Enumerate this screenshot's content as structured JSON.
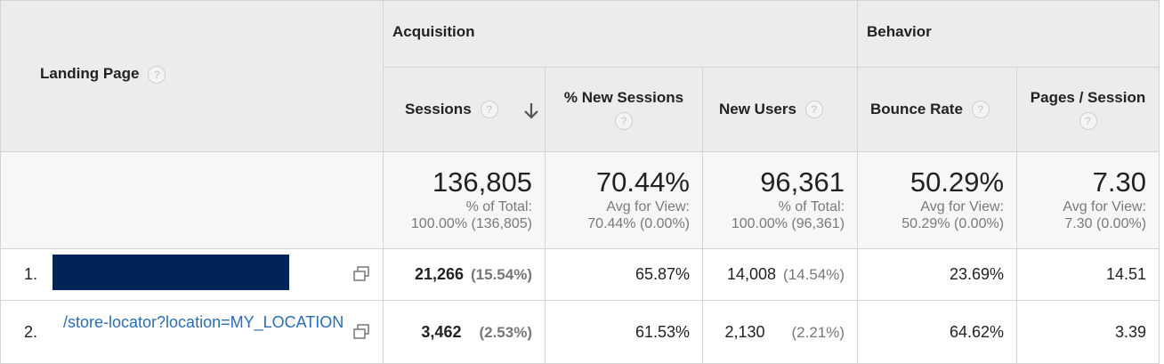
{
  "help_icon": "?",
  "table": {
    "groups": [
      "Acquisition",
      "Behavior"
    ],
    "columns": [
      "Landing Page",
      "Sessions",
      "% New Sessions",
      "New Users",
      "Bounce Rate",
      "Pages / Session"
    ],
    "totals": [
      {
        "value": "136,805",
        "caption": "% of Total:",
        "detail": "100.00% (136,805)"
      },
      {
        "value": "70.44%",
        "caption": "Avg for View:",
        "detail": "70.44% (0.00%)"
      },
      {
        "value": "96,361",
        "caption": "% of Total:",
        "detail": "100.00% (96,361)"
      },
      {
        "value": "50.29%",
        "caption": "Avg for View:",
        "detail": "50.29% (0.00%)"
      },
      {
        "value": "7.30",
        "caption": "Avg for View:",
        "detail": "7.30 (0.00%)"
      }
    ],
    "rows": [
      {
        "index": "1.",
        "sessions": "21,266",
        "sessions_share": "(15.54%)",
        "new_sessions": "65.87%",
        "new_users": "14,008",
        "new_users_share": "(14.54%)",
        "bounce_rate": "23.69%",
        "pages_per_session": "14.51"
      },
      {
        "index": "2.",
        "page": "/store-locator?location=MY_LOCATION",
        "sessions": "3,462",
        "sessions_share": "(2.53%)",
        "new_sessions": "61.53%",
        "new_users": "2,130",
        "new_users_share": "(2.21%)",
        "bounce_rate": "64.62%",
        "pages_per_session": "3.39"
      }
    ]
  }
}
